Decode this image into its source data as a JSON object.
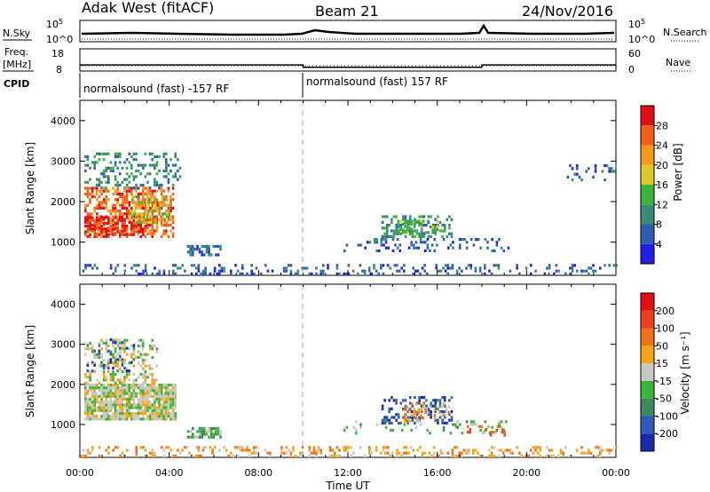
{
  "header": {
    "station": "Adak West (fitACF)",
    "beam": "Beam 21",
    "date": "24/Nov/2016"
  },
  "sky_panel": {
    "left_label": "N.Sky",
    "right_label": "N.Search",
    "left_ticks": [
      "10^5",
      "10^0"
    ],
    "right_ticks": [
      "10^5",
      "10^0"
    ]
  },
  "freq_panel": {
    "left_label_line1": "Freq.",
    "left_label_line2": "[MHz]",
    "right_label": "Nave",
    "left_ticks": [
      "18",
      "8"
    ],
    "right_ticks": [
      "60",
      "0"
    ],
    "freq_steps": [
      {
        "start_h": 0,
        "end_h": 10,
        "mhz": 10.3
      },
      {
        "start_h": 10,
        "end_h": 18,
        "mhz": 9.1
      },
      {
        "start_h": 18,
        "end_h": 24,
        "mhz": 10.3
      }
    ]
  },
  "cpid": {
    "label": "CPID",
    "segments": [
      {
        "start_h": 0,
        "text": "normalsound (fast) -157 RF"
      },
      {
        "start_h": 10,
        "text": "normalsound (fast) 157 RF"
      }
    ]
  },
  "chart_data": [
    {
      "type": "heatmap",
      "name": "power",
      "xlabel": "",
      "ylabel": "Slant Range [km]",
      "xlim": [
        0,
        24
      ],
      "ylim": [
        180,
        4500
      ],
      "yticks": [
        "1000",
        "2000",
        "3000",
        "4000"
      ],
      "colorbar": {
        "label": "Power [dB]",
        "ticks": [
          "4",
          "8",
          "12",
          "16",
          "20",
          "24",
          "28"
        ],
        "colors": [
          "#1f1fe6",
          "#2d5db0",
          "#3a8a77",
          "#3cb43c",
          "#dcc828",
          "#f59a1e",
          "#f06018",
          "#e01010"
        ]
      },
      "regions": [
        {
          "t": [
            0.2,
            4.2
          ],
          "r": [
            1100,
            2300
          ],
          "level": 6,
          "density": 0.55
        },
        {
          "t": [
            0.2,
            3.0
          ],
          "r": [
            1150,
            1600
          ],
          "level": 7,
          "density": 0.6
        },
        {
          "t": [
            0.2,
            4.5
          ],
          "r": [
            2300,
            3200
          ],
          "level": 2,
          "density": 0.3
        },
        {
          "t": [
            2.2,
            4.0
          ],
          "r": [
            1450,
            2100
          ],
          "level": 4,
          "density": 0.5
        },
        {
          "t": [
            4.8,
            6.3
          ],
          "r": [
            650,
            900
          ],
          "level": 1,
          "density": 0.55
        },
        {
          "t": [
            13.5,
            16.6
          ],
          "r": [
            1100,
            1650
          ],
          "level": 2,
          "density": 0.5
        },
        {
          "t": [
            14.2,
            16.0
          ],
          "r": [
            1200,
            1500
          ],
          "level": 3,
          "density": 0.4
        },
        {
          "t": [
            11.8,
            19.2
          ],
          "r": [
            750,
            1050
          ],
          "level": 1,
          "density": 0.2
        },
        {
          "t": [
            21.8,
            23.9
          ],
          "r": [
            2500,
            2950
          ],
          "level": 1,
          "density": 0.15
        },
        {
          "t": [
            0.0,
            24.0
          ],
          "r": [
            180,
            420
          ],
          "level": 1,
          "density": 0.22
        }
      ]
    },
    {
      "type": "heatmap",
      "name": "velocity",
      "xlabel": "Time UT",
      "ylabel": "Slant Range [km]",
      "xlim": [
        0,
        24
      ],
      "ylim": [
        180,
        4500
      ],
      "yticks": [
        "1000",
        "2000",
        "3000",
        "4000"
      ],
      "xticks": [
        "00:00",
        "04:00",
        "08:00",
        "12:00",
        "16:00",
        "20:00",
        "00:00"
      ],
      "colorbar": {
        "label": "Velocity [m s⁻¹]",
        "ticks": [
          "200",
          "100",
          "50",
          "15",
          "-15",
          "-50",
          "-100",
          "-200"
        ],
        "colors": [
          "#1a2aa8",
          "#2e5ab8",
          "#3c8a5c",
          "#3cb43c",
          "#c8c8c0",
          "#f5a21e",
          "#f07018",
          "#e84020",
          "#e01010"
        ]
      },
      "regions": [
        {
          "t": [
            0.2,
            4.3
          ],
          "r": [
            1100,
            2000
          ],
          "level": 4,
          "density": 0.9
        },
        {
          "t": [
            0.2,
            3.5
          ],
          "r": [
            2000,
            3100
          ],
          "level": 4,
          "density": 0.35
        },
        {
          "t": [
            0.3,
            2.5
          ],
          "r": [
            2300,
            3100
          ],
          "level": 1,
          "density": 0.12
        },
        {
          "t": [
            4.8,
            6.3
          ],
          "r": [
            650,
            900
          ],
          "level": 3,
          "density": 0.6
        },
        {
          "t": [
            13.5,
            16.6
          ],
          "r": [
            1000,
            1650
          ],
          "level": 1,
          "density": 0.35
        },
        {
          "t": [
            14.5,
            16.5
          ],
          "r": [
            1050,
            1500
          ],
          "level": 5,
          "density": 0.35
        },
        {
          "t": [
            16.8,
            19.0
          ],
          "r": [
            700,
            950
          ],
          "level": 6,
          "density": 0.3
        },
        {
          "t": [
            11.8,
            19.2
          ],
          "r": [
            750,
            1050
          ],
          "level": 3,
          "density": 0.12
        },
        {
          "t": [
            0.0,
            24.0
          ],
          "r": [
            180,
            420
          ],
          "level": 5,
          "density": 0.28
        }
      ]
    }
  ]
}
